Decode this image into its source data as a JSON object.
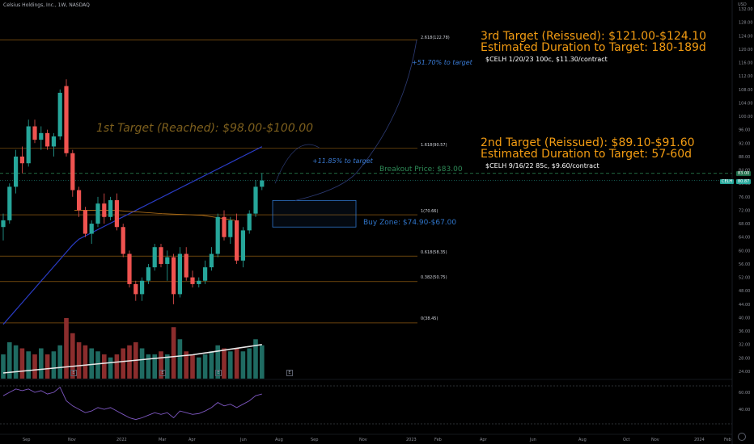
{
  "header": {
    "symbol_line": "Celsius Holdings, Inc., 1W, NASDAQ",
    "currency": "USD"
  },
  "annotations": {
    "target1": "1st Target (Reached): $98.00-$100.00",
    "target2_line1": "2nd Target (Reissued): $89.10-$91.60",
    "target2_line2": "Estimated Duration to Target: 57-60d",
    "target2_option": "$CELH 9/16/22 85c, $9.60/contract",
    "target3_line1": "3rd Target (Reissued): $121.00-$124.10",
    "target3_line2": "Estimated Duration to Target: 180-189d",
    "target3_option": "$CELH 1/20/23 100c, $11.30/contract",
    "pct_3rd": "+51.70% to target",
    "pct_2nd": "+11.85% to target",
    "breakout": "Breakout Price: $83.00",
    "buy_zone": "Buy Zone: $74.90-$67.00"
  },
  "fib_levels": [
    {
      "label": "2.618(122.78)",
      "value": 122.78
    },
    {
      "label": "1.618(90.57)",
      "value": 90.57
    },
    {
      "label": "1(70.66)",
      "value": 70.66
    },
    {
      "label": "0.618(58.35)",
      "value": 58.35
    },
    {
      "label": "0.382(50.75)",
      "value": 50.75
    },
    {
      "label": "0(38.45)",
      "value": 38.45
    }
  ],
  "price_tags": {
    "breakout_tag": "83.00",
    "symbol_tag": "CELH",
    "last_tag": "80.87"
  },
  "y_axis_ticks": [
    "132.00",
    "128.00",
    "124.00",
    "120.00",
    "116.00",
    "112.00",
    "108.00",
    "104.00",
    "100.00",
    "96.00",
    "92.00",
    "88.00",
    "84.00",
    "80.00",
    "76.00",
    "72.00",
    "68.00",
    "64.00",
    "60.00",
    "56.00",
    "52.00",
    "48.00",
    "44.00",
    "40.00",
    "36.00",
    "32.00",
    "28.00",
    "24.00"
  ],
  "x_axis_ticks": [
    "Sep",
    "Nov",
    "2022",
    "Mar",
    "Apr",
    "Jun",
    "Aug",
    "Sep",
    "Nov",
    "2023",
    "Feb",
    "Apr",
    "Jun",
    "Aug",
    "Oct",
    "Nov",
    "2024",
    "Feb"
  ],
  "rsi_ticks": [
    "60.00",
    "40.00"
  ],
  "colors": {
    "up": "#26a69a",
    "down": "#ef5350",
    "fib_line": "#d4861a",
    "annotation_orange": "#f39c12",
    "buy_zone": "#2f74c8",
    "breakout": "#2e8b57",
    "ma_blue": "#2a3cc5",
    "ma_white": "#e8e8e8",
    "ma_orange": "#b8741a",
    "rsi": "#7e57c2"
  },
  "chart_data": {
    "type": "candlestick",
    "timeframe": "1W",
    "y_range": [
      22,
      133
    ],
    "candles": [
      {
        "o": 67,
        "h": 71,
        "l": 63,
        "c": 69
      },
      {
        "o": 69,
        "h": 80,
        "l": 68,
        "c": 79
      },
      {
        "o": 79,
        "h": 90,
        "l": 77,
        "c": 88
      },
      {
        "o": 88,
        "h": 91,
        "l": 83,
        "c": 86
      },
      {
        "o": 86,
        "h": 99,
        "l": 85,
        "c": 97
      },
      {
        "o": 97,
        "h": 99,
        "l": 92,
        "c": 93
      },
      {
        "o": 93,
        "h": 97,
        "l": 90,
        "c": 95
      },
      {
        "o": 95,
        "h": 96,
        "l": 90,
        "c": 91
      },
      {
        "o": 91,
        "h": 95,
        "l": 88,
        "c": 94
      },
      {
        "o": 94,
        "h": 108,
        "l": 93,
        "c": 107
      },
      {
        "o": 109,
        "h": 111,
        "l": 88,
        "c": 89
      },
      {
        "o": 89,
        "h": 90,
        "l": 76,
        "c": 78
      },
      {
        "o": 78,
        "h": 79,
        "l": 70,
        "c": 72
      },
      {
        "o": 72,
        "h": 73,
        "l": 64,
        "c": 65
      },
      {
        "o": 65,
        "h": 69,
        "l": 62,
        "c": 68
      },
      {
        "o": 68,
        "h": 76,
        "l": 67,
        "c": 74
      },
      {
        "o": 74,
        "h": 77,
        "l": 68,
        "c": 70
      },
      {
        "o": 70,
        "h": 76,
        "l": 69,
        "c": 75
      },
      {
        "o": 75,
        "h": 77,
        "l": 66,
        "c": 67
      },
      {
        "o": 67,
        "h": 68,
        "l": 58,
        "c": 59
      },
      {
        "o": 59,
        "h": 60,
        "l": 49,
        "c": 50
      },
      {
        "o": 50,
        "h": 51,
        "l": 45,
        "c": 47
      },
      {
        "o": 47,
        "h": 52,
        "l": 45,
        "c": 51
      },
      {
        "o": 51,
        "h": 56,
        "l": 50,
        "c": 55
      },
      {
        "o": 55,
        "h": 62,
        "l": 54,
        "c": 61
      },
      {
        "o": 61,
        "h": 62,
        "l": 55,
        "c": 56
      },
      {
        "o": 56,
        "h": 60,
        "l": 51,
        "c": 58
      },
      {
        "o": 58,
        "h": 59,
        "l": 44,
        "c": 47
      },
      {
        "o": 47,
        "h": 61,
        "l": 46,
        "c": 59
      },
      {
        "o": 59,
        "h": 61,
        "l": 51,
        "c": 52
      },
      {
        "o": 52,
        "h": 54,
        "l": 49,
        "c": 50
      },
      {
        "o": 50,
        "h": 52,
        "l": 49,
        "c": 51
      },
      {
        "o": 51,
        "h": 57,
        "l": 50,
        "c": 55
      },
      {
        "o": 55,
        "h": 61,
        "l": 54,
        "c": 59
      },
      {
        "o": 59,
        "h": 71,
        "l": 58,
        "c": 70
      },
      {
        "o": 70,
        "h": 72,
        "l": 63,
        "c": 64
      },
      {
        "o": 64,
        "h": 70,
        "l": 62,
        "c": 69
      },
      {
        "o": 69,
        "h": 71,
        "l": 56,
        "c": 57
      },
      {
        "o": 57,
        "h": 67,
        "l": 55,
        "c": 66
      },
      {
        "o": 66,
        "h": 72,
        "l": 65,
        "c": 71
      },
      {
        "o": 71,
        "h": 81,
        "l": 70,
        "c": 79
      },
      {
        "o": 79,
        "h": 83,
        "l": 78,
        "c": 80.87
      }
    ],
    "volume": [
      0.4,
      0.6,
      0.55,
      0.5,
      0.45,
      0.4,
      0.5,
      0.4,
      0.45,
      0.55,
      1.0,
      0.75,
      0.6,
      0.55,
      0.5,
      0.45,
      0.4,
      0.35,
      0.4,
      0.5,
      0.55,
      0.6,
      0.5,
      0.4,
      0.4,
      0.45,
      0.4,
      0.85,
      0.65,
      0.45,
      0.4,
      0.35,
      0.4,
      0.45,
      0.55,
      0.5,
      0.45,
      0.5,
      0.45,
      0.5,
      0.65,
      0.55
    ],
    "rsi": [
      56,
      60,
      64,
      62,
      64,
      60,
      62,
      58,
      60,
      66,
      50,
      44,
      40,
      36,
      38,
      42,
      40,
      42,
      38,
      34,
      30,
      28,
      30,
      33,
      36,
      34,
      36,
      30,
      38,
      36,
      34,
      35,
      38,
      42,
      48,
      44,
      46,
      42,
      46,
      50,
      56,
      58
    ]
  }
}
